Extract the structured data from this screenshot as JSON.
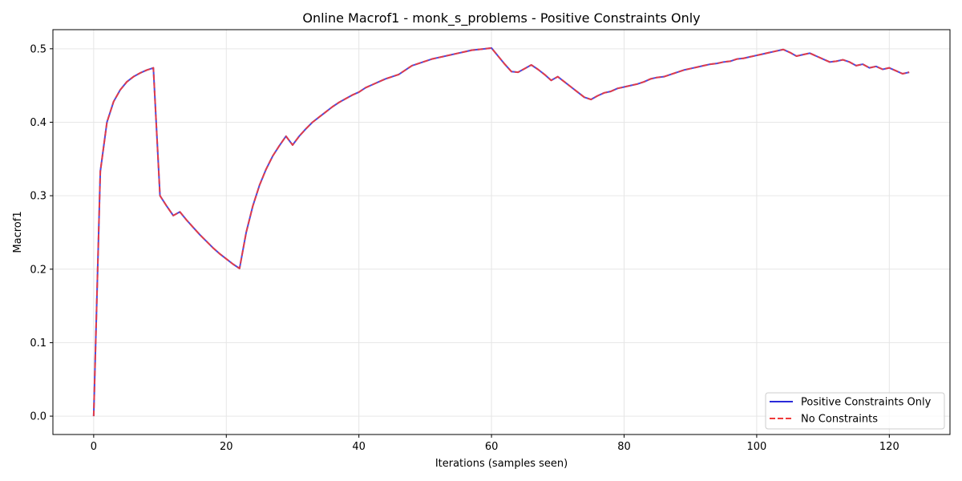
{
  "chart_data": {
    "type": "line",
    "title": "Online Macrof1 - monk_s_problems - Positive Constraints Only",
    "xlabel": "Iterations (samples seen)",
    "ylabel": "Macrof1",
    "xlim": [
      -6.15,
      129.15
    ],
    "ylim": [
      -0.025,
      0.526
    ],
    "xticks": [
      0,
      20,
      40,
      60,
      80,
      100,
      120
    ],
    "yticks": [
      0.0,
      0.1,
      0.2,
      0.3,
      0.4,
      0.5
    ],
    "xtick_labels": [
      "0",
      "20",
      "40",
      "60",
      "80",
      "100",
      "120"
    ],
    "ytick_labels": [
      "0.0",
      "0.1",
      "0.2",
      "0.3",
      "0.4",
      "0.5"
    ],
    "grid": true,
    "legend_position": "lower-right",
    "x": [
      0,
      1,
      2,
      3,
      4,
      5,
      6,
      7,
      8,
      9,
      10,
      11,
      12,
      13,
      14,
      15,
      16,
      17,
      18,
      19,
      20,
      21,
      22,
      23,
      24,
      25,
      26,
      27,
      28,
      29,
      30,
      31,
      32,
      33,
      34,
      35,
      36,
      37,
      38,
      39,
      40,
      41,
      42,
      43,
      44,
      45,
      46,
      47,
      48,
      49,
      50,
      51,
      52,
      53,
      54,
      55,
      56,
      57,
      58,
      59,
      60,
      61,
      62,
      63,
      64,
      65,
      66,
      67,
      68,
      69,
      70,
      71,
      72,
      73,
      74,
      75,
      76,
      77,
      78,
      79,
      80,
      81,
      82,
      83,
      84,
      85,
      86,
      87,
      88,
      89,
      90,
      91,
      92,
      93,
      94,
      95,
      96,
      97,
      98,
      99,
      100,
      101,
      102,
      103,
      104,
      105,
      106,
      107,
      108,
      109,
      110,
      111,
      112,
      113,
      114,
      115,
      116,
      117,
      118,
      119,
      120,
      121,
      122,
      123
    ],
    "series": [
      {
        "name": "Positive Constraints Only",
        "color": "#2b2bd9",
        "style": "solid",
        "values": [
          0.0,
          0.333,
          0.4,
          0.428,
          0.444,
          0.455,
          0.462,
          0.467,
          0.471,
          0.474,
          0.3,
          0.286,
          0.273,
          0.278,
          0.267,
          0.257,
          0.247,
          0.238,
          0.229,
          0.221,
          0.214,
          0.207,
          0.201,
          0.25,
          0.286,
          0.314,
          0.336,
          0.354,
          0.368,
          0.381,
          0.369,
          0.381,
          0.391,
          0.4,
          0.407,
          0.414,
          0.421,
          0.427,
          0.432,
          0.437,
          0.441,
          0.447,
          0.451,
          0.455,
          0.459,
          0.462,
          0.465,
          0.471,
          0.477,
          0.48,
          0.483,
          0.486,
          0.488,
          0.49,
          0.492,
          0.494,
          0.496,
          0.498,
          0.499,
          0.5,
          0.501,
          0.49,
          0.479,
          0.469,
          0.468,
          0.473,
          0.478,
          0.472,
          0.465,
          0.457,
          0.462,
          0.455,
          0.448,
          0.441,
          0.434,
          0.431,
          0.436,
          0.44,
          0.442,
          0.446,
          0.448,
          0.45,
          0.452,
          0.455,
          0.459,
          0.461,
          0.462,
          0.465,
          0.468,
          0.471,
          0.473,
          0.475,
          0.477,
          0.479,
          0.48,
          0.482,
          0.483,
          0.486,
          0.487,
          0.489,
          0.491,
          0.493,
          0.495,
          0.497,
          0.499,
          0.495,
          0.49,
          0.492,
          0.494,
          0.49,
          0.486,
          0.482,
          0.483,
          0.485,
          0.482,
          0.477,
          0.479,
          0.474,
          0.476,
          0.472,
          0.474,
          0.47,
          0.466,
          0.468
        ]
      },
      {
        "name": "No Constraints",
        "color": "#f03a3a",
        "style": "dashed",
        "values": [
          0.0,
          0.333,
          0.4,
          0.428,
          0.444,
          0.455,
          0.462,
          0.467,
          0.471,
          0.474,
          0.3,
          0.286,
          0.273,
          0.278,
          0.267,
          0.257,
          0.247,
          0.238,
          0.229,
          0.221,
          0.214,
          0.207,
          0.201,
          0.25,
          0.286,
          0.314,
          0.336,
          0.354,
          0.368,
          0.381,
          0.369,
          0.381,
          0.391,
          0.4,
          0.407,
          0.414,
          0.421,
          0.427,
          0.432,
          0.437,
          0.441,
          0.447,
          0.451,
          0.455,
          0.459,
          0.462,
          0.465,
          0.471,
          0.477,
          0.48,
          0.483,
          0.486,
          0.488,
          0.49,
          0.492,
          0.494,
          0.496,
          0.498,
          0.499,
          0.5,
          0.501,
          0.49,
          0.479,
          0.469,
          0.468,
          0.473,
          0.478,
          0.472,
          0.465,
          0.457,
          0.462,
          0.455,
          0.448,
          0.441,
          0.434,
          0.431,
          0.436,
          0.44,
          0.442,
          0.446,
          0.448,
          0.45,
          0.452,
          0.455,
          0.459,
          0.461,
          0.462,
          0.465,
          0.468,
          0.471,
          0.473,
          0.475,
          0.477,
          0.479,
          0.48,
          0.482,
          0.483,
          0.486,
          0.487,
          0.489,
          0.491,
          0.493,
          0.495,
          0.497,
          0.499,
          0.495,
          0.49,
          0.492,
          0.494,
          0.49,
          0.486,
          0.482,
          0.483,
          0.485,
          0.482,
          0.477,
          0.479,
          0.474,
          0.476,
          0.472,
          0.474,
          0.47,
          0.466,
          0.468
        ]
      }
    ]
  }
}
